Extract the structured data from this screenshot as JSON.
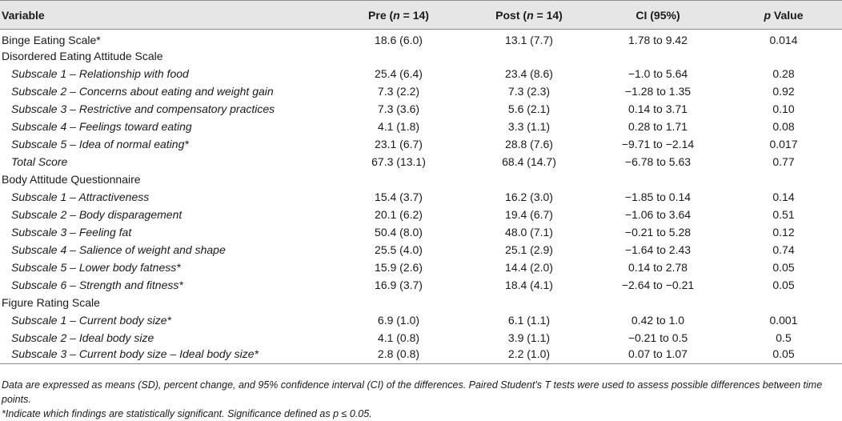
{
  "headers": {
    "variable": "Variable",
    "pre_prefix": "Pre (",
    "pre_n": "n",
    "pre_suffix": " = 14)",
    "post_prefix": "Post (",
    "post_n": "n",
    "post_suffix": " = 14)",
    "ci": "CI (95%)",
    "p_italic": "p",
    "p_rest": " Value"
  },
  "rows": [
    {
      "variable": "Binge Eating Scale*",
      "pre": "18.6 (6.0)",
      "post": "13.1 (7.7)",
      "ci": "1.78 to 9.42",
      "p": "0.014"
    },
    {
      "variable": "Disordered Eating Attitude Scale",
      "pre": "",
      "post": "",
      "ci": "",
      "p": ""
    },
    {
      "variable": "Subscale 1 – Relationship with food",
      "pre": "25.4 (6.4)",
      "post": "23.4 (8.6)",
      "ci": "−1.0 to 5.64",
      "p": "0.28"
    },
    {
      "variable": "Subscale 2 – Concerns about eating and weight gain",
      "pre": "7.3 (2.2)",
      "post": "7.3 (2.3)",
      "ci": "−1.28 to 1.35",
      "p": "0.92"
    },
    {
      "variable": "Subscale 3 – Restrictive and compensatory practices",
      "pre": "7.3 (3.6)",
      "post": "5.6 (2.1)",
      "ci": "0.14 to 3.71",
      "p": "0.10"
    },
    {
      "variable": "Subscale 4 – Feelings toward eating",
      "pre": "4.1 (1.8)",
      "post": "3.3 (1.1)",
      "ci": "0.28 to 1.71",
      "p": "0.08"
    },
    {
      "variable": "Subscale 5 – Idea of normal eating*",
      "pre": "23.1 (6.7)",
      "post": "28.8 (7.6)",
      "ci": "−9.71 to −2.14",
      "p": "0.017"
    },
    {
      "variable": "Total Score",
      "pre": "67.3 (13.1)",
      "post": "68.4 (14.7)",
      "ci": "−6.78 to 5.63",
      "p": "0.77"
    },
    {
      "variable": "Body Attitude Questionnaire",
      "pre": "",
      "post": "",
      "ci": "",
      "p": ""
    },
    {
      "variable": "Subscale 1 – Attractiveness",
      "pre": "15.4 (3.7)",
      "post": "16.2 (3.0)",
      "ci": "−1.85 to 0.14",
      "p": "0.14"
    },
    {
      "variable": "Subscale 2 – Body disparagement",
      "pre": "20.1 (6.2)",
      "post": "19.4 (6.7)",
      "ci": "−1.06 to 3.64",
      "p": "0.51"
    },
    {
      "variable": "Subscale 3 – Feeling fat",
      "pre": "50.4 (8.0)",
      "post": "48.0 (7.1)",
      "ci": "−0.21 to 5.28",
      "p": "0.12"
    },
    {
      "variable": "Subscale 4 – Salience of weight and shape",
      "pre": "25.5 (4.0)",
      "post": "25.1 (2.9)",
      "ci": "−1.64 to 2.43",
      "p": "0.74"
    },
    {
      "variable": "Subscale 5 – Lower body fatness*",
      "pre": "15.9 (2.6)",
      "post": "14.4 (2.0)",
      "ci": "0.14 to 2.78",
      "p": "0.05"
    },
    {
      "variable": "Subscale 6 – Strength and fitness*",
      "pre": "16.9 (3.7)",
      "post": "18.4 (4.1)",
      "ci": "−2.64 to −0.21",
      "p": "0.05"
    },
    {
      "variable": "Figure Rating Scale",
      "pre": "",
      "post": "",
      "ci": "",
      "p": ""
    },
    {
      "variable": "Subscale 1 – Current body size*",
      "pre": "6.9 (1.0)",
      "post": "6.1 (1.1)",
      "ci": "0.42 to 1.0",
      "p": "0.001"
    },
    {
      "variable": "Subscale 2 – Ideal body size",
      "pre": "4.1 (0.8)",
      "post": "3.9 (1.1)",
      "ci": "−0.21 to 0.5",
      "p": "0.5"
    },
    {
      "variable": "Subscale 3 – Current body size – Ideal body size*",
      "pre": "2.8 (0.8)",
      "post": "2.2 (1.0)",
      "ci": "0.07 to 1.07",
      "p": "0.05"
    }
  ],
  "footnotes": {
    "note1": "Data are expressed as means (SD), percent change, and 95% confidence interval (CI) of the differences. Paired Student's T tests were used to assess possible differences between time points.",
    "note2": "*Indicate which findings are statistically significant. Significance defined as p ≤ 0.05."
  }
}
